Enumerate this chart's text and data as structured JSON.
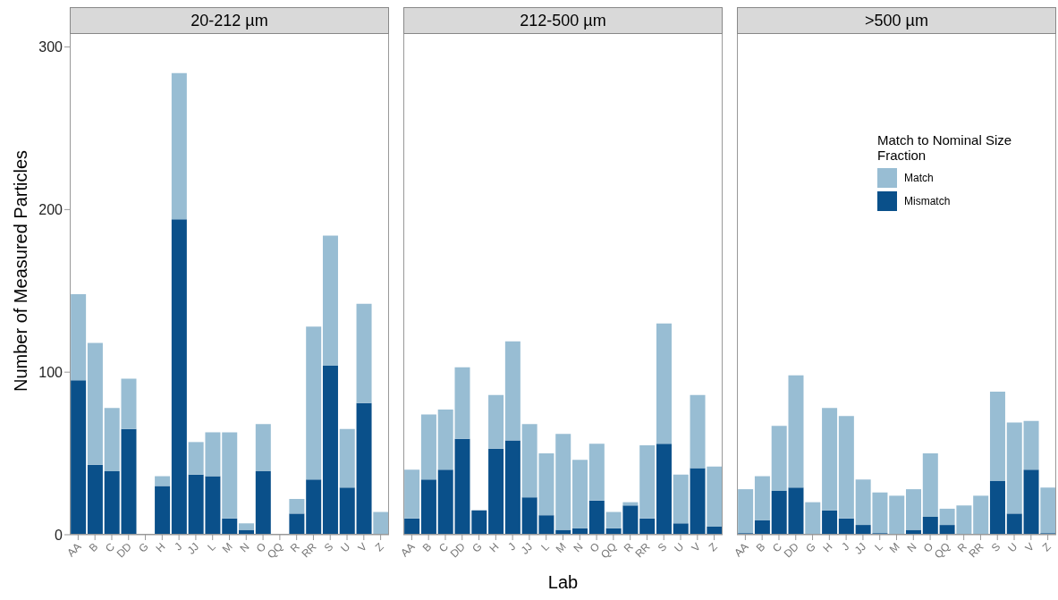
{
  "chart_data": [
    {
      "type": "bar",
      "title": "20-212 µm",
      "ylabel": "Number of Measured Particles",
      "stacked": true,
      "categories": [
        "AA",
        "B",
        "C",
        "DD",
        "G",
        "H",
        "J",
        "JJ",
        "L",
        "M",
        "N",
        "O",
        "QQ",
        "R",
        "RR",
        "S",
        "U",
        "V",
        "Z"
      ],
      "ylim": [
        0,
        308
      ],
      "yticks": [
        0,
        100,
        200,
        300
      ],
      "series": [
        {
          "color": "#0a508a",
          "values": [
            95,
            43,
            39,
            65,
            0,
            30,
            194,
            37,
            36,
            10,
            3,
            39,
            0,
            13,
            34,
            104,
            29,
            81,
            0
          ]
        },
        {
          "color": "#98bdd3",
          "values": [
            53,
            75,
            39,
            31,
            0,
            6,
            90,
            20,
            27,
            53,
            4,
            29,
            0,
            9,
            94,
            80,
            36,
            61,
            14
          ]
        }
      ]
    },
    {
      "type": "bar",
      "title": "212-500 µm",
      "xlabel": "Lab",
      "stacked": true,
      "tick_labels": "x",
      "categories": [
        "AA",
        "B",
        "C",
        "DD",
        "G",
        "H",
        "J",
        "JJ",
        "L",
        "M",
        "N",
        "O",
        "QQ",
        "R",
        "RR",
        "S",
        "U",
        "V",
        "Z"
      ],
      "ylim": [
        0,
        308
      ],
      "yticks": [
        0,
        100,
        200,
        300
      ],
      "series": [
        {
          "color": "#0a508a",
          "values": [
            10,
            34,
            40,
            59,
            15,
            53,
            58,
            23,
            12,
            3,
            4,
            21,
            4,
            18,
            10,
            56,
            7,
            41,
            5
          ]
        },
        {
          "color": "#98bdd3",
          "values": [
            30,
            40,
            37,
            44,
            0,
            33,
            61,
            45,
            38,
            59,
            42,
            35,
            10,
            2,
            45,
            74,
            30,
            45,
            37
          ]
        }
      ]
    },
    {
      "type": "bar",
      "title": ">500 µm",
      "stacked": true,
      "tick_labels": "x",
      "legend": "top right",
      "legend_title": "Match to Nominal Size Fraction",
      "categories": [
        "AA",
        "B",
        "C",
        "DD",
        "G",
        "H",
        "J",
        "JJ",
        "L",
        "M",
        "N",
        "O",
        "QQ",
        "R",
        "RR",
        "S",
        "U",
        "V",
        "Z"
      ],
      "ylim": [
        0,
        308
      ],
      "yticks": [
        0,
        100,
        200,
        300
      ],
      "series": [
        {
          "name": "Mismatch",
          "color": "#0a508a",
          "values": [
            1,
            9,
            27,
            29,
            0,
            15,
            10,
            6,
            1,
            0,
            3,
            11,
            6,
            0,
            0,
            33,
            13,
            40,
            1
          ]
        },
        {
          "name": "Match",
          "color": "#98bdd3",
          "values": [
            27,
            27,
            40,
            69,
            20,
            63,
            63,
            28,
            25,
            24,
            25,
            39,
            10,
            18,
            24,
            55,
            56,
            30,
            28
          ]
        }
      ]
    }
  ]
}
